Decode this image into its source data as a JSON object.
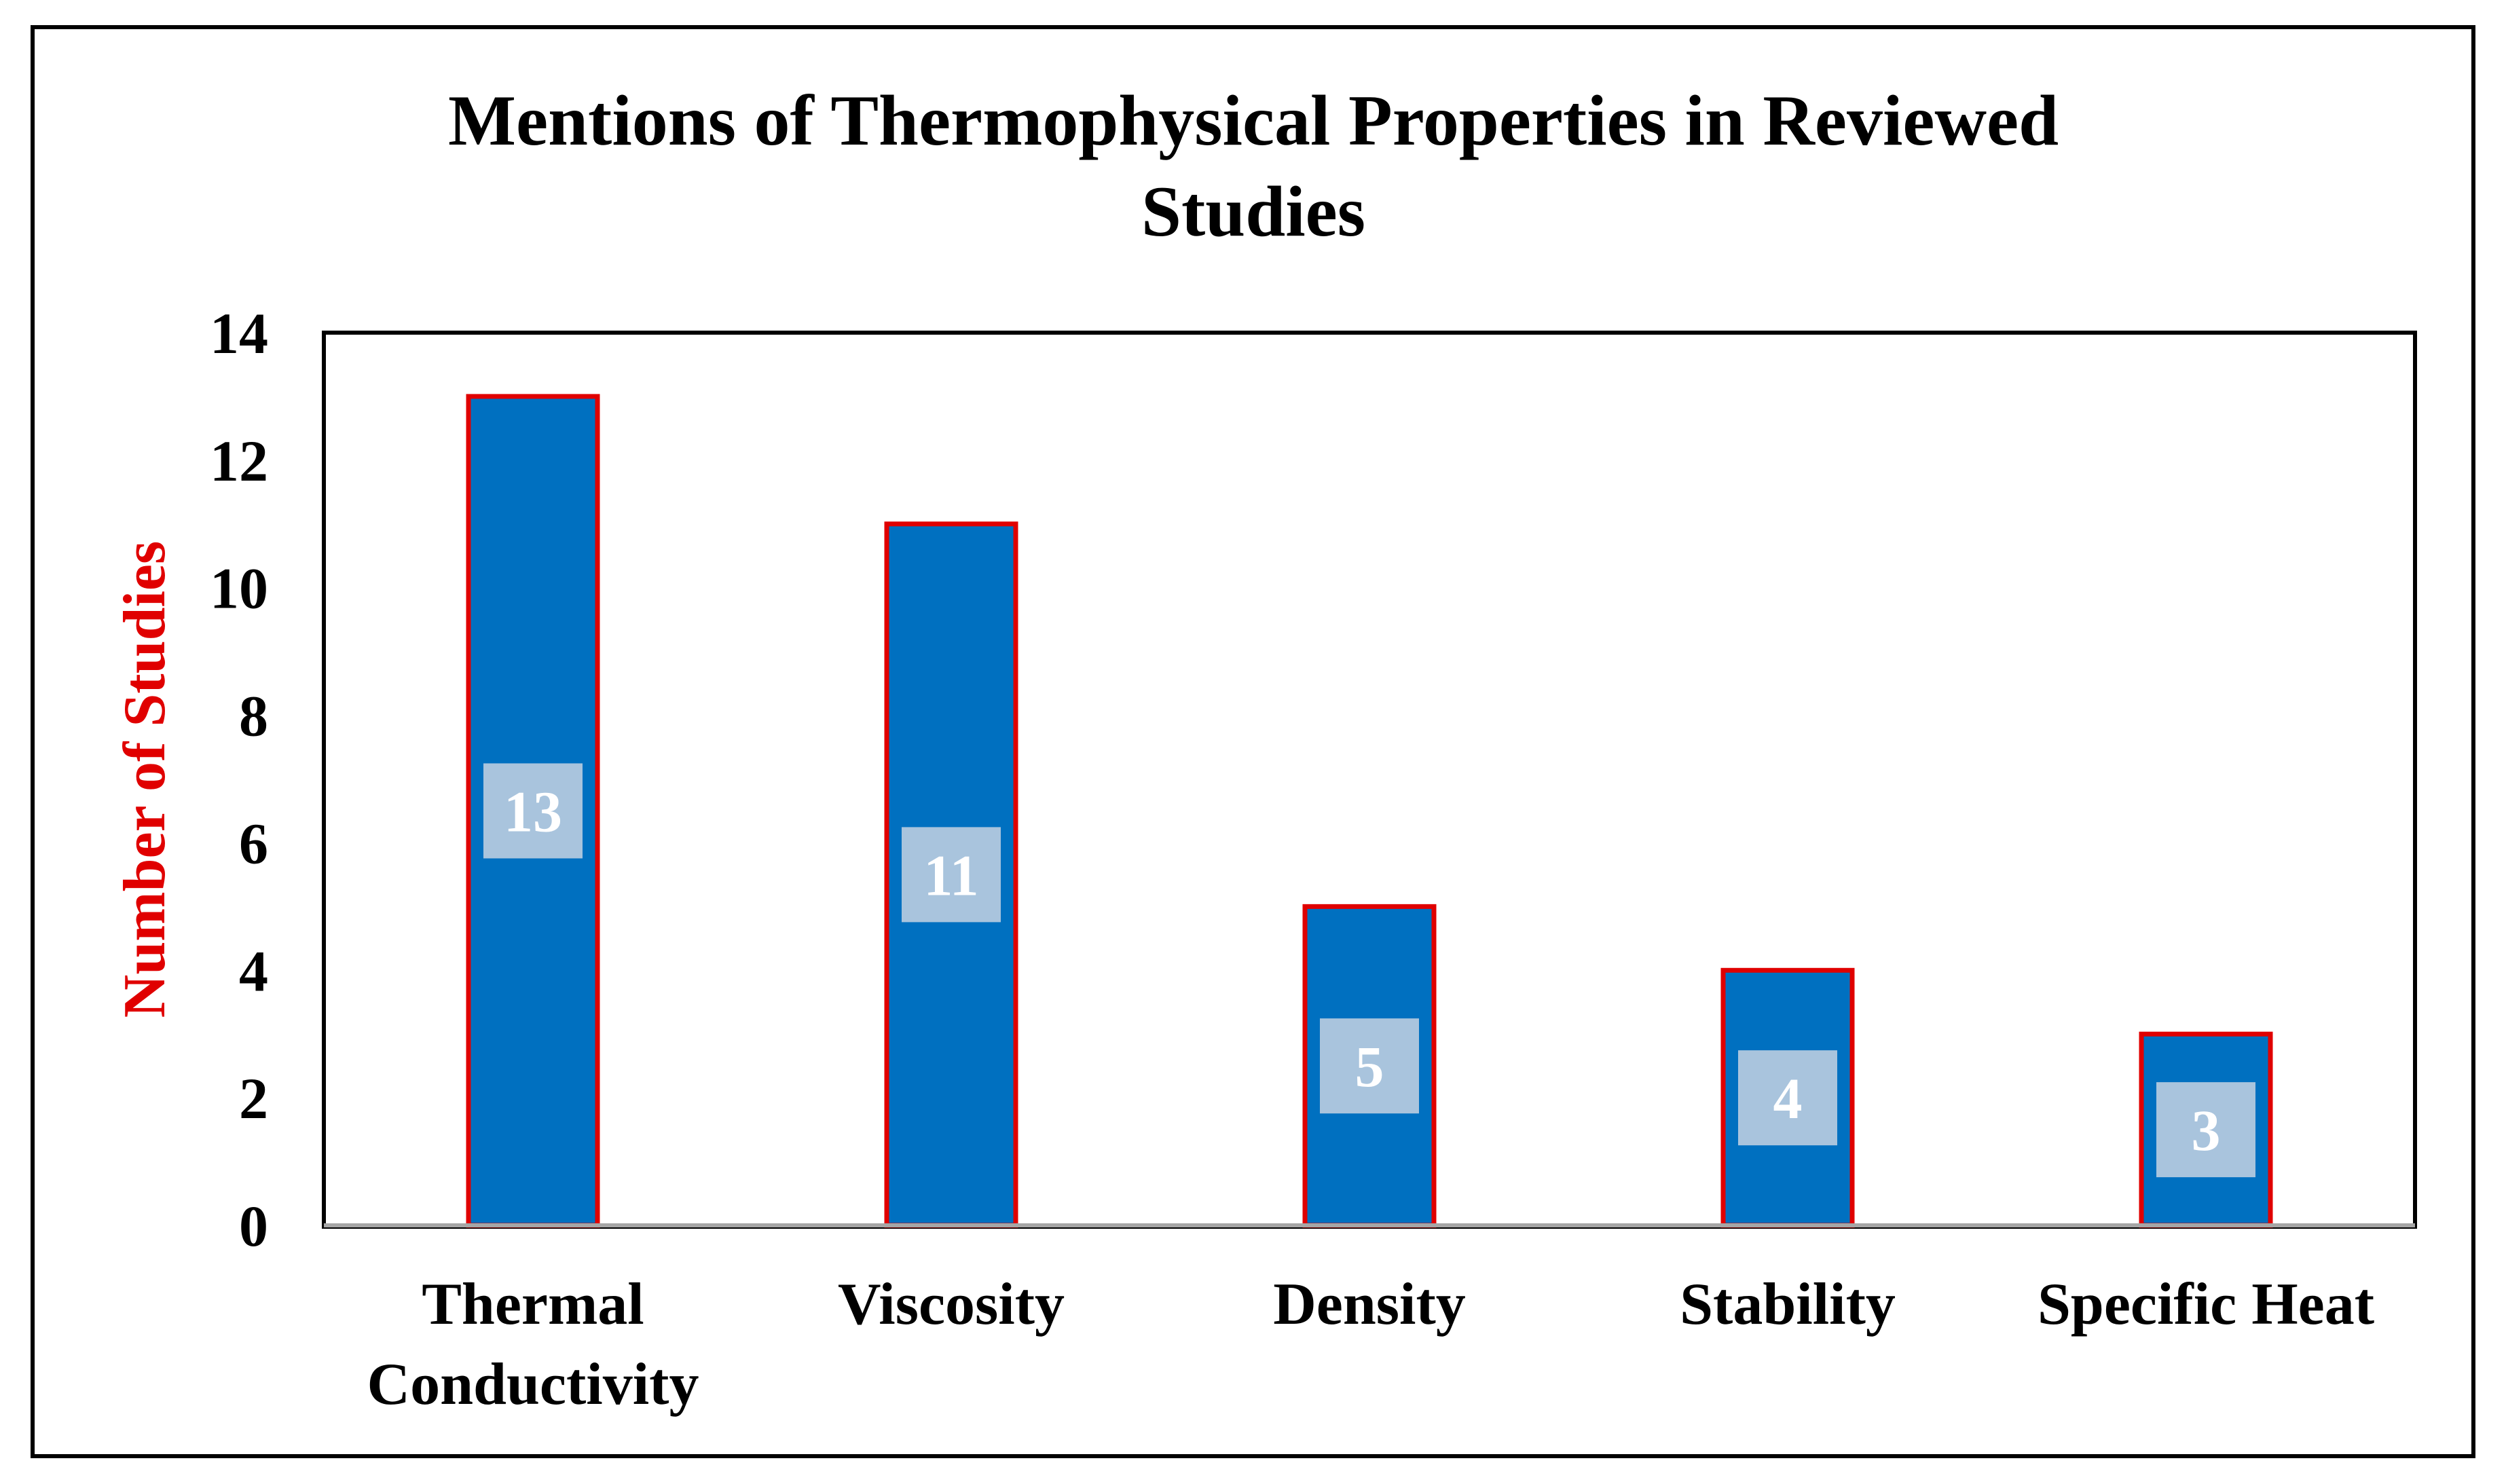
{
  "chart_data": {
    "type": "bar",
    "title": "Mentions of Thermophysical Properties in Reviewed Studies",
    "title_lines": [
      "Mentions of Thermophysical Properties in Reviewed",
      "Studies"
    ],
    "categories": [
      "Thermal Conductivity",
      "Viscosity",
      "Density",
      "Stability",
      "Specific Heat"
    ],
    "category_lines": [
      [
        "Thermal",
        "Conductivity"
      ],
      [
        "Viscosity"
      ],
      [
        "Density"
      ],
      [
        "Stability"
      ],
      [
        "Specific Heat"
      ]
    ],
    "values": [
      13,
      11,
      5,
      4,
      3
    ],
    "data_labels": [
      "13",
      "11",
      "5",
      "4",
      "3"
    ],
    "xlabel": "",
    "ylabel": "Number of Studies",
    "ylim": [
      0,
      14
    ],
    "yticks": [
      0,
      2,
      4,
      6,
      8,
      10,
      12,
      14
    ],
    "ytick_labels": [
      "0",
      "2",
      "4",
      "6",
      "8",
      "10",
      "12",
      "14"
    ],
    "grid": false,
    "legend": "none"
  },
  "colors": {
    "bar_fill": "#0070C0",
    "bar_outline": "#E00000",
    "ylabel_color": "#E00000",
    "data_label_box": "#A9C4DD",
    "axis": "#000000",
    "baseline": "#A6A6A6"
  }
}
